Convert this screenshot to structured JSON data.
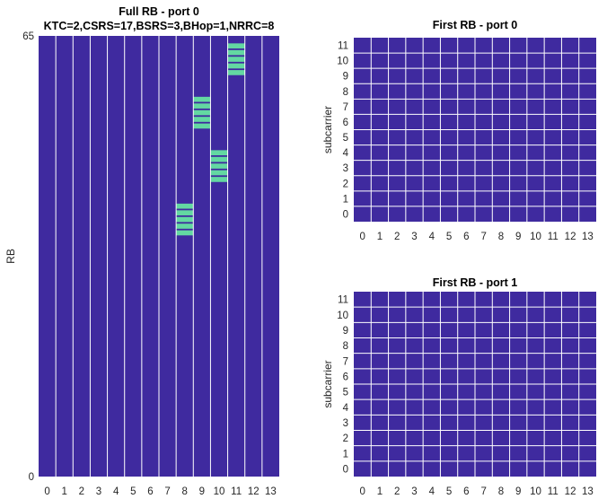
{
  "colors": {
    "background": "#3f2a9f",
    "highlight": "#63d8a2",
    "grid": "#ffffff",
    "text": "#262626"
  },
  "chart_data": [
    {
      "type": "heatmap",
      "title": "Full RB - port 0",
      "subtitle": "KTC=2,CSRS=17,BSRS=3,BHop=1,NRRC=8",
      "xlabel": "",
      "ylabel": "RB",
      "x_ticks": [
        "0",
        "1",
        "2",
        "3",
        "4",
        "5",
        "6",
        "7",
        "8",
        "9",
        "10",
        "11",
        "12",
        "13"
      ],
      "y_ticks": [
        "0",
        "65"
      ],
      "xlim": [
        0,
        13
      ],
      "ylim": [
        0,
        65
      ],
      "grid": "vertical lines between symbols",
      "values_meaning": "background = 0, highlighted = 1 (SRS allocation)",
      "highlighted_blocks": [
        {
          "symbol": 8,
          "rb_start": 36,
          "rb_end": 40
        },
        {
          "symbol": 9,
          "rb_start": 52,
          "rb_end": 56
        },
        {
          "symbol": 10,
          "rb_start": 44,
          "rb_end": 48
        },
        {
          "symbol": 11,
          "rb_start": 60,
          "rb_end": 64
        }
      ]
    },
    {
      "type": "heatmap",
      "title": "First RB - port 0",
      "xlabel": "",
      "ylabel": "subcarrier",
      "x_ticks": [
        "0",
        "1",
        "2",
        "3",
        "4",
        "5",
        "6",
        "7",
        "8",
        "9",
        "10",
        "11",
        "12",
        "13"
      ],
      "y_ticks": [
        "0",
        "1",
        "2",
        "3",
        "4",
        "5",
        "6",
        "7",
        "8",
        "9",
        "10",
        "11"
      ],
      "xlim": [
        0,
        13
      ],
      "ylim": [
        0,
        11
      ],
      "grid": "on",
      "highlighted_cells": []
    },
    {
      "type": "heatmap",
      "title": "First RB - port 1",
      "xlabel": "",
      "ylabel": "subcarrier",
      "x_ticks": [
        "0",
        "1",
        "2",
        "3",
        "4",
        "5",
        "6",
        "7",
        "8",
        "9",
        "10",
        "11",
        "12",
        "13"
      ],
      "y_ticks": [
        "0",
        "1",
        "2",
        "3",
        "4",
        "5",
        "6",
        "7",
        "8",
        "9",
        "10",
        "11"
      ],
      "xlim": [
        0,
        13
      ],
      "ylim": [
        0,
        11
      ],
      "grid": "on",
      "highlighted_cells": []
    }
  ]
}
